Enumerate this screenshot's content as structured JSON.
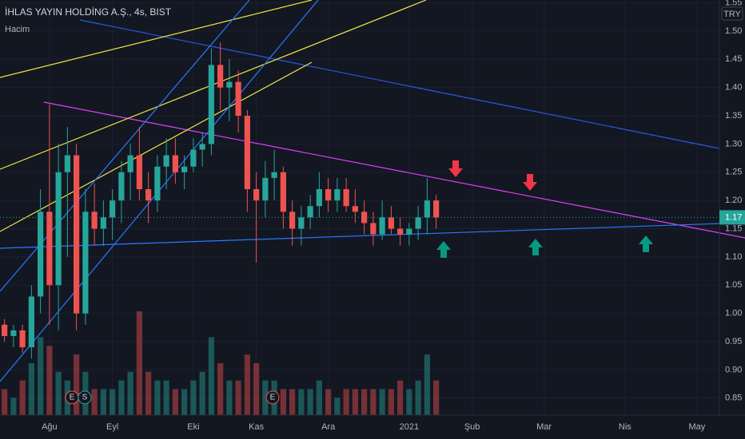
{
  "chart_data": {
    "type": "candlestick",
    "title": "İHLAS YAYIN HOLDİNG A.Ş., 4s, BIST",
    "subtitle": "Hacim",
    "currency": "TRY",
    "up_color": "#26a69a",
    "down_color": "#ef5350",
    "categories": [
      null,
      null,
      null,
      null,
      null,
      "Ağu",
      null,
      null,
      null,
      null,
      null,
      null,
      "Eyl",
      null,
      null,
      null,
      null,
      null,
      null,
      null,
      null,
      "Eki",
      null,
      null,
      null,
      null,
      null,
      null,
      "Kas",
      null,
      null,
      null,
      null,
      null,
      null,
      null,
      "Ara",
      null,
      null,
      null,
      null,
      null,
      null,
      null,
      null,
      "2021",
      null,
      null,
      null,
      null,
      null,
      null,
      "Şub",
      null,
      null,
      null,
      null,
      null,
      null,
      null,
      "Mar",
      null,
      null,
      null,
      null,
      null,
      null,
      null,
      null,
      "Nis",
      null,
      null,
      null,
      null,
      null,
      null,
      null,
      "May",
      null,
      null
    ],
    "open": [
      0.98,
      0.96,
      0.97,
      0.94,
      1.03,
      1.18,
      1.05,
      1.25,
      1.28,
      1.0,
      1.18,
      1.15,
      1.17,
      1.2,
      1.25,
      1.28,
      1.22,
      1.2,
      1.26,
      1.28,
      1.25,
      1.26,
      1.29,
      1.3,
      1.44,
      1.4,
      1.41,
      1.35,
      1.22,
      1.2,
      1.24,
      1.25,
      1.18,
      1.15,
      1.17,
      1.19,
      1.22,
      1.2,
      1.22,
      1.19,
      1.18,
      1.16,
      1.14,
      1.17,
      1.15,
      1.14,
      1.15,
      1.17,
      1.2,
      null,
      null,
      null,
      null,
      null,
      null,
      null,
      null,
      null,
      null,
      null,
      null,
      null,
      null,
      null,
      null,
      null,
      null,
      null,
      null,
      null,
      null,
      null,
      null,
      null,
      null,
      null,
      null,
      null,
      null,
      null
    ],
    "high": [
      0.99,
      0.98,
      0.98,
      1.05,
      1.22,
      1.37,
      1.3,
      1.33,
      1.3,
      1.22,
      1.23,
      1.2,
      1.22,
      1.27,
      1.3,
      1.33,
      1.25,
      1.28,
      1.31,
      1.31,
      1.28,
      1.31,
      1.32,
      1.47,
      1.48,
      1.45,
      1.43,
      1.36,
      1.25,
      1.27,
      1.29,
      1.26,
      1.2,
      1.19,
      1.21,
      1.25,
      1.24,
      1.24,
      1.24,
      1.22,
      1.2,
      1.18,
      1.2,
      1.19,
      1.17,
      1.16,
      1.19,
      1.24,
      1.21,
      null,
      null,
      null,
      null,
      null,
      null,
      null,
      null,
      null,
      null,
      null,
      null,
      null,
      null,
      null,
      null,
      null,
      null,
      null,
      null,
      null,
      null,
      null,
      null,
      null,
      null,
      null,
      null,
      null,
      null,
      null
    ],
    "low": [
      0.95,
      0.94,
      0.93,
      0.92,
      1.0,
      0.98,
      0.97,
      1.1,
      0.97,
      0.98,
      1.12,
      1.12,
      1.13,
      1.16,
      1.2,
      1.2,
      1.16,
      1.18,
      1.22,
      1.23,
      1.22,
      1.25,
      1.26,
      1.28,
      1.36,
      1.34,
      1.32,
      1.18,
      1.09,
      1.17,
      1.2,
      1.15,
      1.12,
      1.12,
      1.15,
      1.17,
      1.18,
      1.18,
      1.18,
      1.16,
      1.14,
      1.12,
      1.13,
      1.14,
      1.12,
      1.12,
      1.13,
      1.14,
      1.15,
      null,
      null,
      null,
      null,
      null,
      null,
      null,
      null,
      null,
      null,
      null,
      null,
      null,
      null,
      null,
      null,
      null,
      null,
      null,
      null,
      null,
      null,
      null,
      null,
      null,
      null,
      null,
      null,
      null,
      null,
      null
    ],
    "close": [
      0.96,
      0.97,
      0.94,
      1.03,
      1.18,
      1.05,
      1.25,
      1.28,
      1.0,
      1.18,
      1.15,
      1.17,
      1.2,
      1.25,
      1.28,
      1.22,
      1.2,
      1.26,
      1.28,
      1.25,
      1.26,
      1.29,
      1.3,
      1.44,
      1.4,
      1.41,
      1.35,
      1.22,
      1.2,
      1.24,
      1.25,
      1.18,
      1.15,
      1.17,
      1.19,
      1.22,
      1.2,
      1.22,
      1.19,
      1.18,
      1.16,
      1.14,
      1.17,
      1.15,
      1.14,
      1.15,
      1.17,
      1.2,
      1.17,
      null,
      null,
      null,
      null,
      null,
      null,
      null,
      null,
      null,
      null,
      null,
      null,
      null,
      null,
      null,
      null,
      null,
      null,
      null,
      null,
      null,
      null,
      null,
      null,
      null,
      null,
      null,
      null,
      null,
      null,
      null
    ],
    "volume": [
      3,
      2,
      4,
      6,
      9,
      8,
      5,
      4,
      7,
      5,
      3,
      3,
      3,
      4,
      5,
      12,
      5,
      4,
      4,
      3,
      3,
      4,
      5,
      9,
      6,
      4,
      4,
      7,
      6,
      4,
      4,
      3,
      3,
      3,
      3,
      4,
      3,
      2,
      3,
      3,
      3,
      3,
      3,
      3,
      4,
      3,
      4,
      7,
      4,
      null,
      null,
      null,
      null,
      null,
      null,
      null,
      null,
      null,
      null,
      null,
      null,
      null,
      null,
      null,
      null,
      null,
      null,
      null,
      null,
      null,
      null,
      null,
      null,
      null,
      null,
      null,
      null,
      null,
      null,
      null
    ],
    "events": [
      "E",
      "S",
      "E"
    ],
    "ylim": [
      0.82,
      1.555
    ],
    "yticks": [
      0.85,
      {
        "value": 0.9,
        "label": "0.90"
      },
      0.95,
      {
        "value": 1.0,
        "label": "1.00"
      },
      1.05,
      {
        "value": 1.1,
        "label": "1.10"
      },
      1.15,
      {
        "value": 1.2,
        "label": "1.20"
      },
      1.25,
      {
        "value": 1.3,
        "label": "1.30"
      },
      1.35,
      {
        "value": 1.4,
        "label": "1.40"
      },
      1.45,
      {
        "value": 1.5,
        "label": "1.50"
      },
      1.55
    ],
    "grid": true
  }
}
